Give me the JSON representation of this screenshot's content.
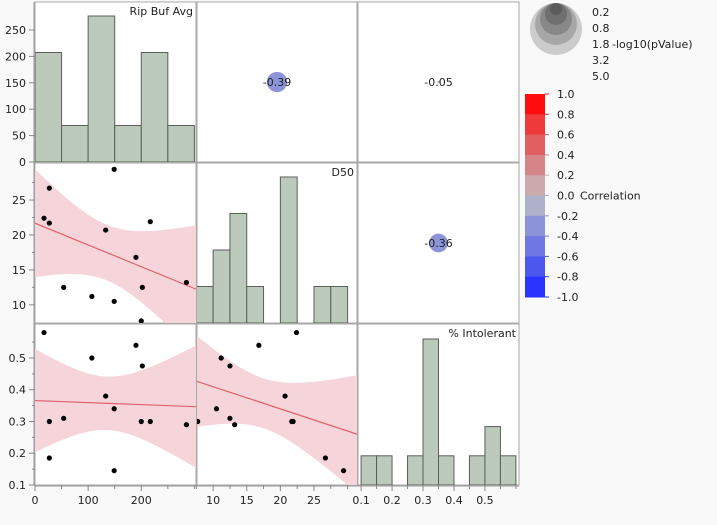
{
  "chart_data": {
    "type": "scatterplot-matrix",
    "variables": [
      "Rip Buf Avg",
      "D50",
      "% Intolerant"
    ],
    "rows": [
      {
        "Rip Buf Avg": 17,
        "D50": 22.4,
        "% Intolerant": 0.58
      },
      {
        "Rip Buf Avg": 27,
        "D50": 26.7,
        "% Intolerant": 0.185
      },
      {
        "Rip Buf Avg": 27,
        "D50": 21.7,
        "% Intolerant": 0.3
      },
      {
        "Rip Buf Avg": 54,
        "D50": 12.5,
        "% Intolerant": 0.31
      },
      {
        "Rip Buf Avg": 107,
        "D50": 11.2,
        "% Intolerant": 0.5
      },
      {
        "Rip Buf Avg": 133,
        "D50": 20.7,
        "% Intolerant": 0.38
      },
      {
        "Rip Buf Avg": 149,
        "D50": 29.4,
        "% Intolerant": 0.145
      },
      {
        "Rip Buf Avg": 149,
        "D50": 10.5,
        "% Intolerant": 0.34
      },
      {
        "Rip Buf Avg": 190,
        "D50": 16.8,
        "% Intolerant": 0.54
      },
      {
        "Rip Buf Avg": 200,
        "D50": 7.7,
        "% Intolerant": 0.3
      },
      {
        "Rip Buf Avg": 202,
        "D50": 12.5,
        "% Intolerant": 0.475
      },
      {
        "Rip Buf Avg": 217,
        "D50": 21.9,
        "% Intolerant": 0.3
      },
      {
        "Rip Buf Avg": 285,
        "D50": 13.2,
        "% Intolerant": 0.29
      }
    ],
    "axes": {
      "Rip Buf Avg": {
        "range": [
          0,
          303
        ],
        "ticks": [
          0,
          50,
          100,
          150,
          200,
          250
        ],
        "x_labels": [
          "0",
          "100",
          "200"
        ],
        "x_label_values": [
          0,
          100,
          200
        ],
        "minor_step": 50
      },
      "D50": {
        "x_range": [
          7.6,
          31.4
        ],
        "y_range": [
          7.4,
          30.3
        ],
        "ticks": [
          10,
          15,
          20,
          25
        ],
        "labels": [
          "10",
          "15",
          "20",
          "25"
        ]
      },
      "% Intolerant": {
        "x_range": [
          0.09,
          0.61
        ],
        "y_range": [
          0.1,
          0.607
        ],
        "ticks": [
          0.1,
          0.2,
          0.3,
          0.4,
          0.5
        ],
        "labels": [
          "0.1",
          "0.2",
          "0.3",
          "0.4",
          "0.5"
        ]
      }
    },
    "row1_y_labels": [
      "0",
      "50",
      "100",
      "150",
      "200",
      "250"
    ],
    "histograms": {
      "Rip Buf Avg": {
        "bin_start": 0,
        "bin_width": 50,
        "counts": [
          3,
          1,
          4,
          1,
          3,
          1
        ]
      },
      "D50": {
        "bin_start": 7.5,
        "bin_width": 2.5,
        "counts": [
          1,
          2,
          3,
          1,
          0,
          4,
          0,
          1,
          1
        ]
      },
      "% Intolerant": {
        "bin_start": 0.1,
        "bin_width": 0.05,
        "counts": [
          1,
          1,
          0,
          1,
          5,
          1,
          0,
          1,
          2,
          1
        ]
      }
    },
    "correlations": [
      {
        "pair": [
          "Rip Buf Avg",
          "D50"
        ],
        "value": -0.39,
        "label": "-0.39"
      },
      {
        "pair": [
          "Rip Buf Avg",
          "% Intolerant"
        ],
        "value": -0.05,
        "label": "-0.05"
      },
      {
        "pair": [
          "D50",
          "% Intolerant"
        ],
        "value": -0.36,
        "label": "-0.36"
      }
    ],
    "fit": "linear with confidence band",
    "colors": {
      "bar": "#bccabb",
      "bar_stroke": "#5a5f5a",
      "band": "#f5d5da",
      "fit_line": "#e2606a",
      "point": "#000000"
    },
    "size_legend": {
      "title": "-log10(pValue)",
      "labels": [
        "0.2",
        "0.8",
        "1.8",
        "3.2",
        "5.0"
      ]
    },
    "color_legend": {
      "title": "Correlation",
      "labels": [
        "1.0",
        "0.8",
        "0.6",
        "0.4",
        "0.2",
        "0.0",
        "-0.2",
        "-0.4",
        "-0.6",
        "-0.8",
        "-1.0"
      ],
      "colors": [
        "#ff0d0d",
        "#ef3a3b",
        "#e15f61",
        "#d58487",
        "#cbaaab",
        "#aeb1c9",
        "#8d93d9",
        "#6e77e2",
        "#4c57ee",
        "#2b34ff"
      ]
    }
  }
}
